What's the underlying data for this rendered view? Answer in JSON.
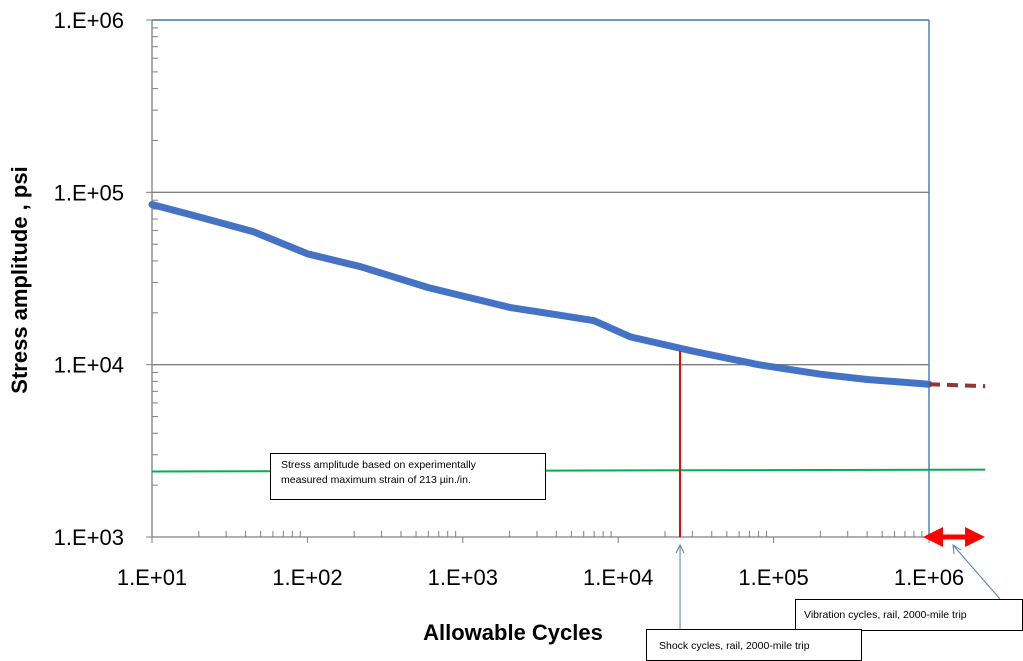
{
  "chart_data": {
    "type": "line",
    "xlabel": "Allowable Cycles",
    "ylabel": "Stress amplitude , psi",
    "x_scale": "log",
    "y_scale": "log",
    "xlim": [
      10,
      1000000
    ],
    "ylim": [
      1000,
      1000000
    ],
    "x_ticks": [
      "1.E+01",
      "1.E+02",
      "1.E+03",
      "1.E+04",
      "1.E+05",
      "1.E+06"
    ],
    "y_ticks": [
      "1.E+03",
      "1.E+04",
      "1.E+05",
      "1.E+06"
    ],
    "grid": "horizontal major",
    "series": [
      {
        "role": "fatigue-curve",
        "color": "#4472c4",
        "x": [
          10,
          20,
          45,
          100,
          220,
          600,
          2000,
          4000,
          7000,
          12000,
          30000,
          80000,
          200000,
          400000,
          1000000
        ],
        "y": [
          85000,
          72000,
          59000,
          44000,
          37000,
          28000,
          21500,
          19500,
          18000,
          14500,
          12000,
          10000,
          8800,
          8200,
          7700
        ]
      },
      {
        "role": "fatigue-curve-extrapolated",
        "color": "#943634",
        "style": "dashed",
        "x": [
          1000000,
          2300000
        ],
        "y": [
          7700,
          7500
        ]
      },
      {
        "role": "measured-stress-level",
        "color": "#00b050",
        "x": [
          10,
          2300000
        ],
        "y": [
          2400,
          2460
        ]
      },
      {
        "role": "shock-cycles-marker",
        "color": "#ff0000",
        "x": [
          25000,
          25000
        ],
        "y": [
          1000,
          12000
        ]
      },
      {
        "role": "vibration-cycles-range",
        "color": "#ff0000",
        "x": [
          1000000,
          2100000
        ],
        "y": [
          1000,
          1000
        ]
      }
    ],
    "annotations": [
      {
        "role": "strain-note",
        "text_lines": [
          "Stress amplitude based on experimentally",
          "measured maximum strain of 213 µin./in."
        ]
      },
      {
        "role": "vibration-note",
        "text": "Vibration cycles, rail, 2000-mile trip"
      },
      {
        "role": "shock-note",
        "text": "Shock cycles, rail, 2000-mile trip"
      }
    ],
    "colors": {
      "frame": "#4f81bd",
      "grid": "#808080",
      "pointer": "#4f81bd"
    }
  }
}
